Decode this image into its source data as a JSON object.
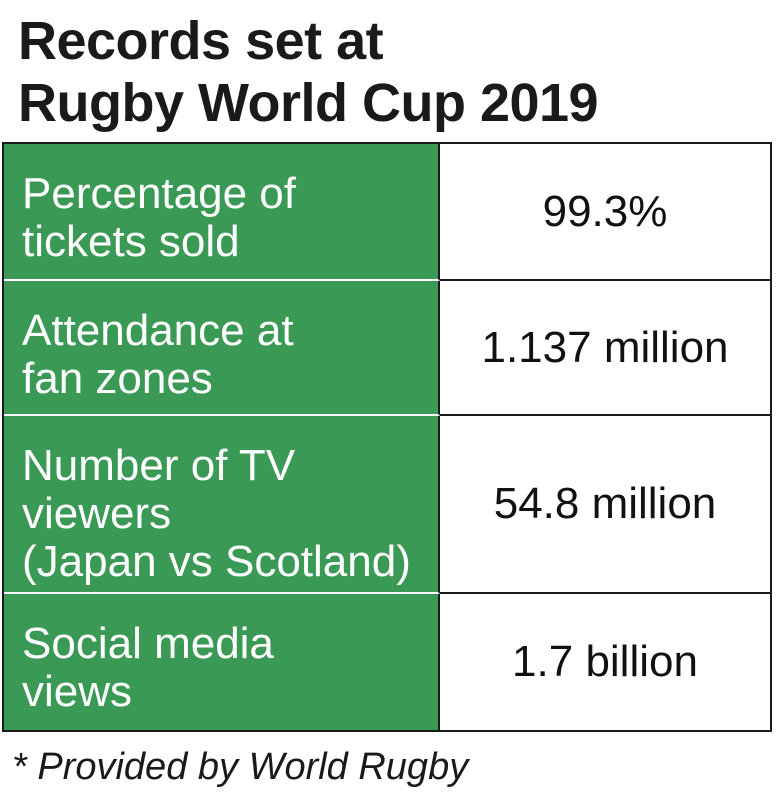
{
  "title": {
    "line1": "Records set at",
    "line2": "Rugby World Cup 2019"
  },
  "rows": [
    {
      "label_lines": [
        "Percentage of",
        "tickets sold"
      ],
      "value": "99.3%"
    },
    {
      "label_lines": [
        "Attendance at",
        "fan zones"
      ],
      "value": "1.137 million"
    },
    {
      "label_lines": [
        "Number of TV",
        "viewers",
        "(Japan vs Scotland)"
      ],
      "value": "54.8 million"
    },
    {
      "label_lines": [
        "Social media",
        "views"
      ],
      "value": "1.7 billion"
    }
  ],
  "footnote": "* Provided by World Rugby",
  "colors": {
    "label_background": "#3a9a55",
    "label_text": "#ffffff",
    "border": "#1a1a1a"
  }
}
